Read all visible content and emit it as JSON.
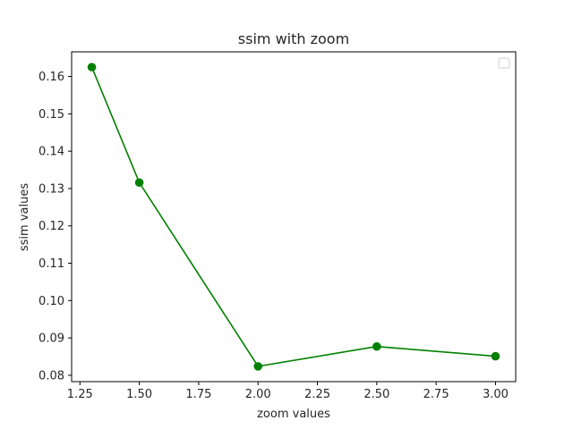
{
  "chart_data": {
    "type": "line",
    "title": "ssim with zoom",
    "xlabel": "zoom values",
    "ylabel": "ssim values",
    "xlim": [
      1.215,
      3.085
    ],
    "ylim": [
      0.0783,
      0.1666
    ],
    "x_ticks": [
      "1.25",
      "1.50",
      "1.75",
      "2.00",
      "2.25",
      "2.50",
      "2.75",
      "3.00"
    ],
    "y_ticks": [
      "0.08",
      "0.09",
      "0.10",
      "0.11",
      "0.12",
      "0.13",
      "0.14",
      "0.15",
      "0.16"
    ],
    "grid": false,
    "legend": {
      "placement": "top-right",
      "entries": []
    },
    "series": [
      {
        "color": "#008000",
        "marker": "circle",
        "x": [
          1.3,
          1.5,
          2.0,
          2.5,
          3.0
        ],
        "y": [
          0.1625,
          0.1316,
          0.0824,
          0.0877,
          0.0851
        ]
      }
    ]
  }
}
